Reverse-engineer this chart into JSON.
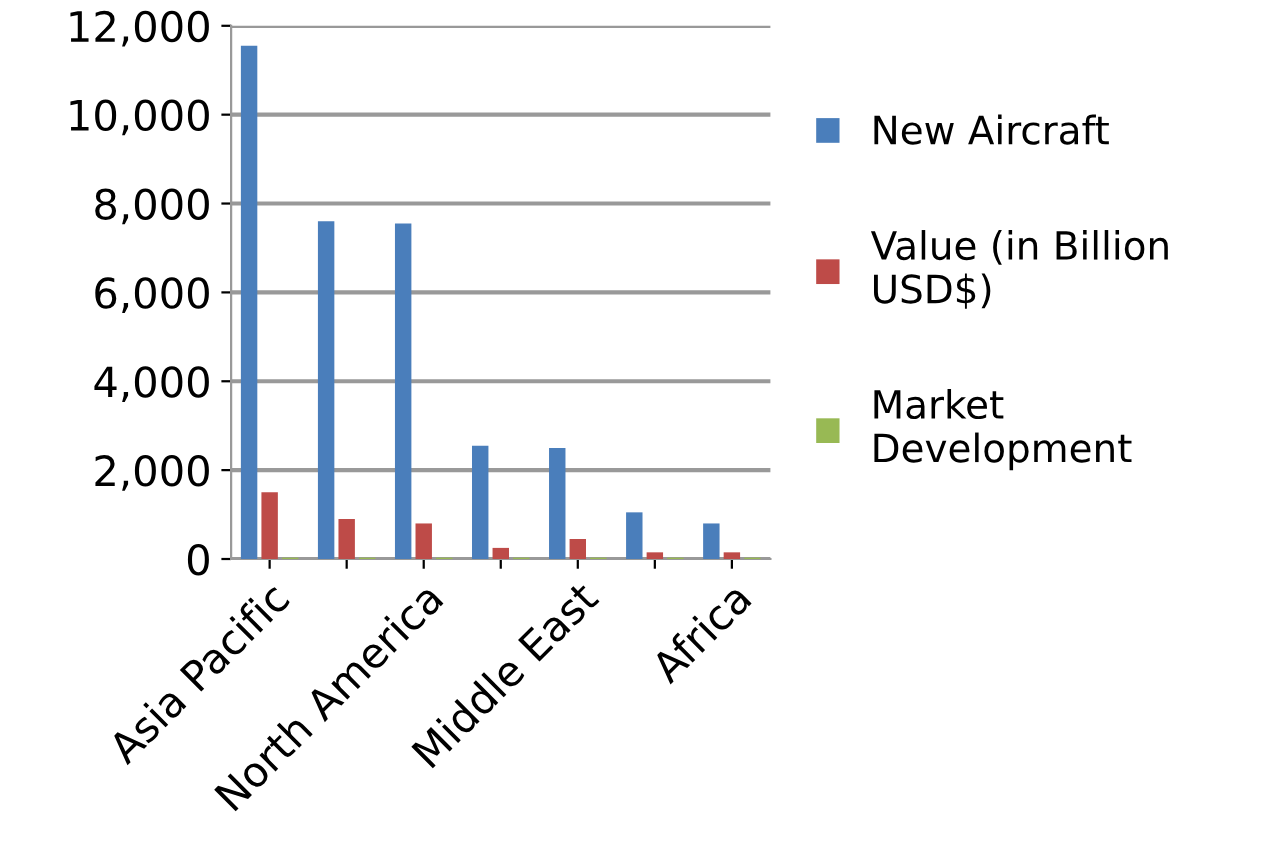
{
  "chart_data": {
    "type": "bar",
    "categories": [
      "Asia Pacific",
      null,
      "North America",
      null,
      "Middle East",
      null,
      "Africa"
    ],
    "series": [
      {
        "name": "New Aircraft",
        "color": "#4a7ebb",
        "values": [
          11550,
          7600,
          7550,
          2550,
          2500,
          1050,
          800
        ]
      },
      {
        "name": "Value (in Billion USD$)",
        "color": "#be4b48",
        "values": [
          1500,
          900,
          800,
          250,
          450,
          150,
          150
        ]
      },
      {
        "name": "Market Development",
        "color": "#98b954",
        "values": [
          30,
          30,
          30,
          30,
          30,
          30,
          30
        ]
      }
    ],
    "ylim": [
      0,
      12000
    ],
    "yticks": [
      {
        "value": 0,
        "label": "0"
      },
      {
        "value": 2000,
        "label": "2,000"
      },
      {
        "value": 4000,
        "label": "4,000"
      },
      {
        "value": 6000,
        "label": "6,000"
      },
      {
        "value": 8000,
        "label": "8,000"
      },
      {
        "value": 10000,
        "label": "10,000"
      },
      {
        "value": 12000,
        "label": "12,000"
      }
    ],
    "grid": "y",
    "legend": "right"
  }
}
